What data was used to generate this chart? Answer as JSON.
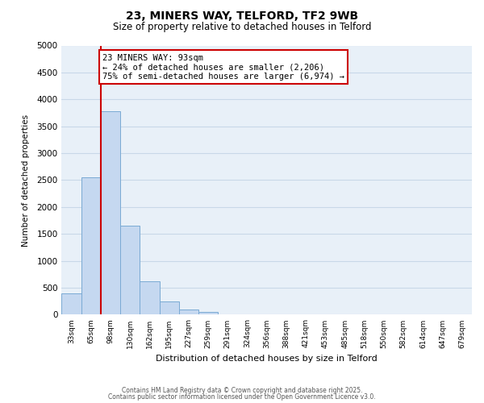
{
  "title": "23, MINERS WAY, TELFORD, TF2 9WB",
  "subtitle": "Size of property relative to detached houses in Telford",
  "xlabel": "Distribution of detached houses by size in Telford",
  "ylabel": "Number of detached properties",
  "bar_labels": [
    "33sqm",
    "65sqm",
    "98sqm",
    "130sqm",
    "162sqm",
    "195sqm",
    "227sqm",
    "259sqm",
    "291sqm",
    "324sqm",
    "356sqm",
    "388sqm",
    "421sqm",
    "453sqm",
    "485sqm",
    "518sqm",
    "550sqm",
    "582sqm",
    "614sqm",
    "647sqm",
    "679sqm"
  ],
  "bar_values": [
    390,
    2550,
    3780,
    1650,
    620,
    250,
    100,
    50,
    0,
    0,
    0,
    0,
    0,
    0,
    0,
    0,
    0,
    0,
    0,
    0,
    0
  ],
  "bar_color": "#c5d8f0",
  "bar_edge_color": "#7aaad4",
  "vline_color": "#cc0000",
  "annotation_title": "23 MINERS WAY: 93sqm",
  "annotation_line1": "← 24% of detached houses are smaller (2,206)",
  "annotation_line2": "75% of semi-detached houses are larger (6,974) →",
  "ylim": [
    0,
    5000
  ],
  "yticks": [
    0,
    500,
    1000,
    1500,
    2000,
    2500,
    3000,
    3500,
    4000,
    4500,
    5000
  ],
  "footer1": "Contains HM Land Registry data © Crown copyright and database right 2025.",
  "footer2": "Contains public sector information licensed under the Open Government Licence v3.0.",
  "background_color": "#ffffff",
  "grid_color": "#c8d8e8",
  "plot_bg_color": "#e8f0f8"
}
